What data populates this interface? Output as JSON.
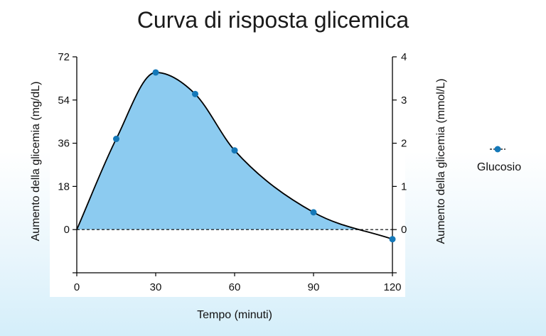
{
  "chart_data": {
    "type": "area",
    "title": "Curva di risposta glicemica",
    "xlabel": "Tempo (minuti)",
    "ylabel": "Aumento della glicemia (mg/dL)",
    "y2label": "Aumento della glicemia (mmol/L)",
    "xlim": [
      0,
      120
    ],
    "ylim": [
      -18,
      72
    ],
    "y2lim": [
      -1,
      4
    ],
    "x_ticks": [
      0,
      30,
      60,
      90,
      120
    ],
    "y_ticks": [
      0,
      18,
      36,
      54,
      72
    ],
    "y2_ticks": [
      0,
      1,
      2,
      3,
      4
    ],
    "grid": false,
    "legend_position": "right",
    "baseline": 0,
    "colors": {
      "fill": "#8ccbf0",
      "marker": "#1478b8",
      "line": "#000000",
      "plot_bg": "#ffffff"
    },
    "series": [
      {
        "name": "Glucosio",
        "x": [
          0,
          15,
          30,
          45,
          60,
          90,
          120
        ],
        "y": [
          0,
          37.8,
          65.5,
          56.5,
          33,
          7.2,
          -4
        ]
      }
    ]
  }
}
